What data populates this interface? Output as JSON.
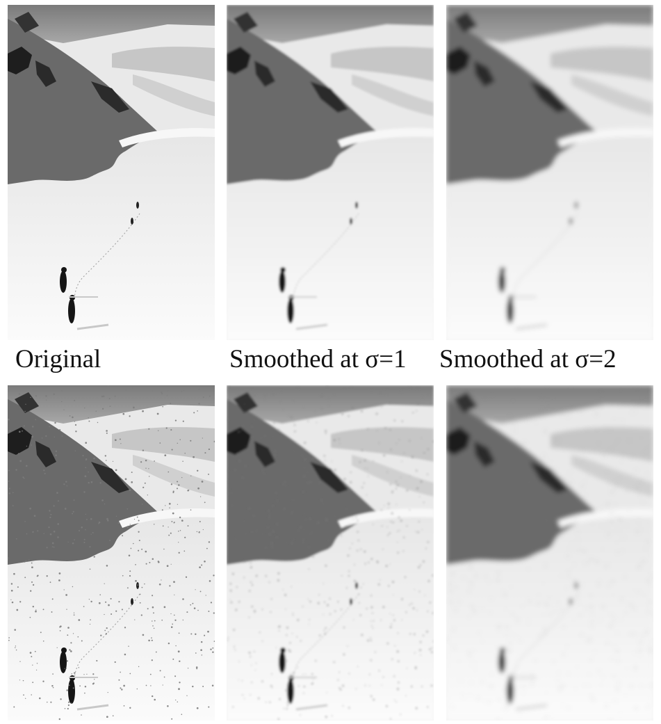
{
  "captions": {
    "original": "Original",
    "smoothed_1": "Smoothed at σ=1",
    "smoothed_2": "Smoothed at σ=2"
  },
  "panels": [
    {
      "name": "original-image",
      "blur": 0,
      "noise": false
    },
    {
      "name": "smoothed-sigma-1-image",
      "blur": 1,
      "noise": false
    },
    {
      "name": "smoothed-sigma-2-image",
      "blur": 2,
      "noise": false
    },
    {
      "name": "noisy-original-image",
      "blur": 0,
      "noise": true
    },
    {
      "name": "noisy-smoothed-sigma-1-image",
      "blur": 1,
      "noise": true
    },
    {
      "name": "noisy-smoothed-sigma-2-image",
      "blur": 2,
      "noise": true
    }
  ]
}
